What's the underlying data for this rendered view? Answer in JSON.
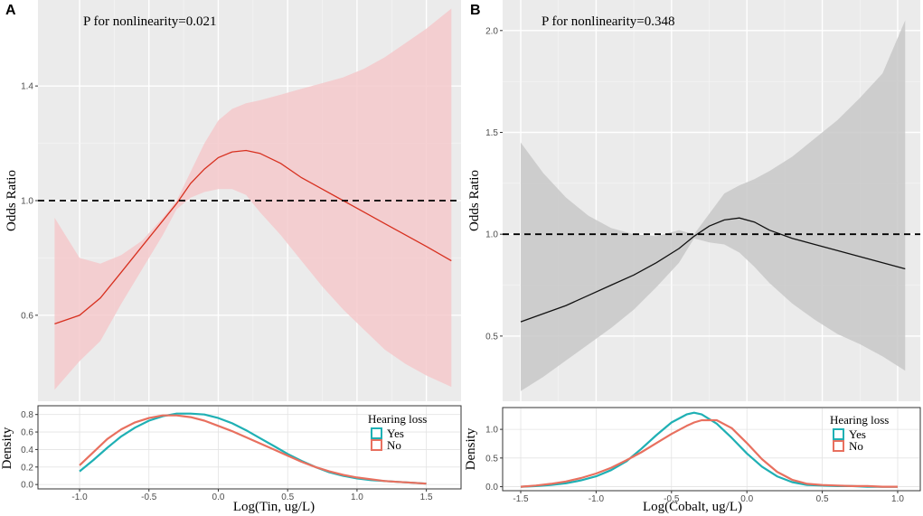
{
  "chart_data": [
    {
      "panel": "A",
      "type": "line",
      "title": "P for nonlinearity=0.021",
      "ylabel": "Odds Ratio",
      "xlim": [
        -1.3,
        1.75
      ],
      "ylim": [
        0.3,
        1.7
      ],
      "yticks": [
        0.6,
        1.0,
        1.4
      ],
      "ytick_labels": [
        "0.6",
        "1.0",
        "1.4"
      ],
      "reference_line": 1.0,
      "fill_color": "#f4c9cb",
      "line_color": "#d7301f",
      "series": [
        {
          "name": "Odds Ratio",
          "x": [
            -1.18,
            -1.0,
            -0.85,
            -0.7,
            -0.55,
            -0.4,
            -0.3,
            -0.2,
            -0.1,
            0.0,
            0.1,
            0.2,
            0.3,
            0.45,
            0.6,
            0.75,
            0.9,
            1.05,
            1.2,
            1.35,
            1.5,
            1.68
          ],
          "y": [
            0.57,
            0.6,
            0.66,
            0.75,
            0.84,
            0.93,
            0.99,
            1.06,
            1.11,
            1.15,
            1.17,
            1.175,
            1.165,
            1.13,
            1.08,
            1.04,
            1.0,
            0.96,
            0.92,
            0.88,
            0.84,
            0.79
          ]
        },
        {
          "name": "Upper CI",
          "x": [
            -1.18,
            -1.0,
            -0.85,
            -0.7,
            -0.55,
            -0.4,
            -0.3,
            -0.2,
            -0.1,
            0.0,
            0.1,
            0.2,
            0.3,
            0.45,
            0.6,
            0.75,
            0.9,
            1.05,
            1.2,
            1.35,
            1.5,
            1.68
          ],
          "y": [
            0.94,
            0.8,
            0.78,
            0.81,
            0.86,
            0.94,
            1.0,
            1.1,
            1.2,
            1.28,
            1.32,
            1.34,
            1.35,
            1.37,
            1.39,
            1.41,
            1.43,
            1.46,
            1.5,
            1.55,
            1.6,
            1.67
          ]
        },
        {
          "name": "Lower CI",
          "x": [
            -1.18,
            -1.0,
            -0.85,
            -0.7,
            -0.55,
            -0.4,
            -0.3,
            -0.2,
            -0.1,
            0.0,
            0.1,
            0.2,
            0.3,
            0.45,
            0.6,
            0.75,
            0.9,
            1.05,
            1.2,
            1.35,
            1.5,
            1.68
          ],
          "y": [
            0.34,
            0.44,
            0.51,
            0.64,
            0.76,
            0.88,
            0.97,
            1.01,
            1.03,
            1.04,
            1.04,
            1.02,
            0.96,
            0.88,
            0.79,
            0.7,
            0.62,
            0.55,
            0.48,
            0.43,
            0.39,
            0.35
          ]
        }
      ],
      "density": {
        "ylabel": "Density",
        "xlabel": "Log(Tin, ug/L)",
        "xticks": [
          -1.0,
          -0.5,
          0.0,
          0.5,
          1.0,
          1.5
        ],
        "xtick_labels": [
          "-1.0",
          "-0.5",
          "0.0",
          "0.5",
          "1.0",
          "1.5"
        ],
        "yticks": [
          0.0,
          0.2,
          0.4,
          0.6,
          0.8
        ],
        "ytick_labels": [
          "0.0",
          "0.2",
          "0.4",
          "0.6",
          "0.8"
        ],
        "ylim": [
          -0.05,
          0.9
        ],
        "legend_title": "Hearing loss",
        "series": [
          {
            "name": "Yes",
            "color": "#1fb0b4",
            "x": [
              -1.0,
              -0.9,
              -0.8,
              -0.7,
              -0.6,
              -0.5,
              -0.4,
              -0.3,
              -0.2,
              -0.1,
              0.0,
              0.1,
              0.2,
              0.3,
              0.4,
              0.5,
              0.6,
              0.7,
              0.8,
              0.9,
              1.0,
              1.1,
              1.2,
              1.3,
              1.4,
              1.5
            ],
            "y": [
              0.15,
              0.28,
              0.42,
              0.55,
              0.65,
              0.73,
              0.78,
              0.81,
              0.81,
              0.8,
              0.76,
              0.7,
              0.62,
              0.53,
              0.44,
              0.35,
              0.27,
              0.2,
              0.14,
              0.1,
              0.07,
              0.05,
              0.04,
              0.03,
              0.02,
              0.01
            ]
          },
          {
            "name": "No",
            "color": "#e8705f",
            "x": [
              -1.0,
              -0.9,
              -0.8,
              -0.7,
              -0.6,
              -0.5,
              -0.4,
              -0.3,
              -0.2,
              -0.1,
              0.0,
              0.1,
              0.2,
              0.3,
              0.4,
              0.5,
              0.6,
              0.7,
              0.8,
              0.9,
              1.0,
              1.1,
              1.2,
              1.3,
              1.4,
              1.5
            ],
            "y": [
              0.22,
              0.37,
              0.52,
              0.63,
              0.71,
              0.76,
              0.79,
              0.79,
              0.77,
              0.73,
              0.67,
              0.61,
              0.54,
              0.47,
              0.4,
              0.33,
              0.26,
              0.2,
              0.15,
              0.11,
              0.08,
              0.06,
              0.04,
              0.03,
              0.02,
              0.01
            ]
          }
        ]
      }
    },
    {
      "panel": "B",
      "type": "line",
      "title": "P for nonlinearity=0.348",
      "ylabel": "Odds Ratio",
      "xlim": [
        -1.62,
        1.15
      ],
      "ylim": [
        0.18,
        2.15
      ],
      "yticks": [
        0.5,
        1.0,
        1.5,
        2.0
      ],
      "ytick_labels": [
        "0.5",
        "1.0",
        "1.5",
        "2.0"
      ],
      "reference_line": 1.0,
      "fill_color": "#c8c8c8",
      "line_color": "#111111",
      "series": [
        {
          "name": "Odds Ratio",
          "x": [
            -1.5,
            -1.35,
            -1.2,
            -1.05,
            -0.9,
            -0.75,
            -0.6,
            -0.45,
            -0.35,
            -0.25,
            -0.15,
            -0.05,
            0.05,
            0.15,
            0.3,
            0.45,
            0.6,
            0.75,
            0.9,
            1.05
          ],
          "y": [
            0.57,
            0.61,
            0.65,
            0.7,
            0.75,
            0.8,
            0.86,
            0.93,
            0.99,
            1.04,
            1.07,
            1.08,
            1.06,
            1.02,
            0.98,
            0.95,
            0.92,
            0.89,
            0.86,
            0.83
          ]
        },
        {
          "name": "Upper CI",
          "x": [
            -1.5,
            -1.35,
            -1.2,
            -1.05,
            -0.9,
            -0.75,
            -0.6,
            -0.45,
            -0.35,
            -0.25,
            -0.15,
            -0.05,
            0.05,
            0.15,
            0.3,
            0.45,
            0.6,
            0.75,
            0.9,
            1.05
          ],
          "y": [
            1.45,
            1.3,
            1.18,
            1.09,
            1.03,
            1.0,
            0.99,
            1.02,
            1.0,
            1.1,
            1.2,
            1.24,
            1.27,
            1.31,
            1.38,
            1.47,
            1.56,
            1.67,
            1.79,
            2.05
          ]
        },
        {
          "name": "Lower CI",
          "x": [
            -1.5,
            -1.35,
            -1.2,
            -1.05,
            -0.9,
            -0.75,
            -0.6,
            -0.45,
            -0.35,
            -0.25,
            -0.15,
            -0.05,
            0.05,
            0.15,
            0.3,
            0.45,
            0.6,
            0.75,
            0.9,
            1.05
          ],
          "y": [
            0.23,
            0.3,
            0.38,
            0.46,
            0.54,
            0.63,
            0.74,
            0.86,
            0.98,
            0.96,
            0.95,
            0.91,
            0.84,
            0.76,
            0.66,
            0.58,
            0.51,
            0.46,
            0.4,
            0.33
          ]
        }
      ],
      "density": {
        "ylabel": "Density",
        "xlabel": "Log(Cobalt, ug/L)",
        "xticks": [
          -1.5,
          -1.0,
          -0.5,
          0.0,
          0.5,
          1.0
        ],
        "xtick_labels": [
          "-1.5",
          "-1.0",
          "-0.5",
          "0.0",
          "0.5",
          "1.0"
        ],
        "yticks": [
          0.0,
          0.5,
          1.0
        ],
        "ytick_labels": [
          "0.0",
          "0.5",
          "1.0"
        ],
        "ylim": [
          -0.07,
          1.38
        ],
        "legend_title": "Hearing loss",
        "series": [
          {
            "name": "Yes",
            "color": "#1fb0b4",
            "x": [
              -1.5,
              -1.4,
              -1.3,
              -1.2,
              -1.1,
              -1.0,
              -0.9,
              -0.8,
              -0.7,
              -0.6,
              -0.5,
              -0.4,
              -0.35,
              -0.3,
              -0.2,
              -0.1,
              0.0,
              0.1,
              0.2,
              0.3,
              0.4,
              0.5,
              0.6,
              0.7,
              0.8,
              0.9,
              1.0
            ],
            "y": [
              0.0,
              0.01,
              0.03,
              0.06,
              0.11,
              0.18,
              0.29,
              0.44,
              0.66,
              0.9,
              1.12,
              1.26,
              1.29,
              1.26,
              1.1,
              0.85,
              0.58,
              0.35,
              0.18,
              0.08,
              0.03,
              0.02,
              0.01,
              0.01,
              0.0,
              0.0,
              0.0
            ]
          },
          {
            "name": "No",
            "color": "#e8705f",
            "x": [
              -1.5,
              -1.4,
              -1.3,
              -1.2,
              -1.1,
              -1.0,
              -0.9,
              -0.8,
              -0.7,
              -0.6,
              -0.5,
              -0.4,
              -0.35,
              -0.3,
              -0.2,
              -0.1,
              0.0,
              0.1,
              0.2,
              0.3,
              0.4,
              0.5,
              0.6,
              0.7,
              0.8,
              0.9,
              1.0
            ],
            "y": [
              0.0,
              0.02,
              0.05,
              0.09,
              0.15,
              0.23,
              0.33,
              0.46,
              0.6,
              0.76,
              0.92,
              1.06,
              1.12,
              1.16,
              1.16,
              1.02,
              0.76,
              0.48,
              0.26,
              0.12,
              0.05,
              0.03,
              0.02,
              0.01,
              0.01,
              0.0,
              0.0
            ]
          }
        ]
      }
    }
  ]
}
